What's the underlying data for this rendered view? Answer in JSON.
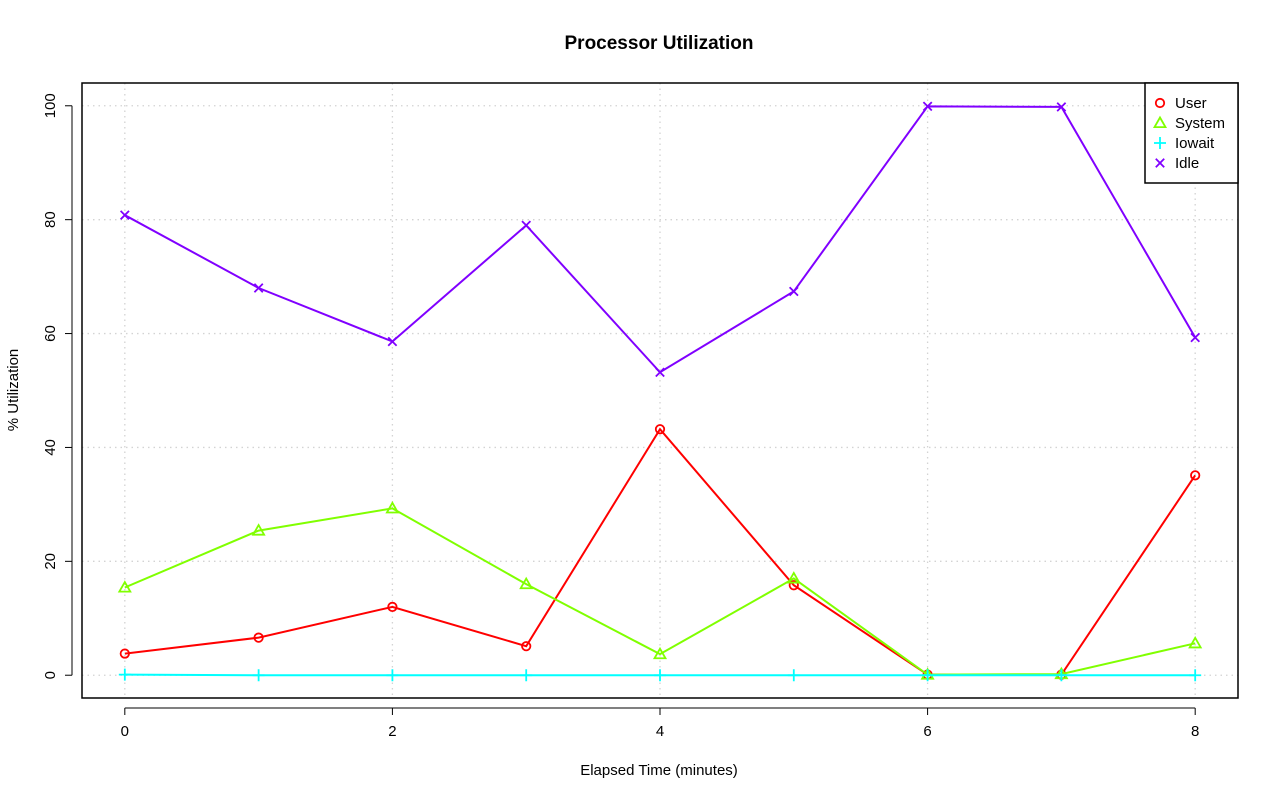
{
  "chart_data": {
    "type": "line",
    "title": "Processor Utilization",
    "xlabel": "Elapsed Time (minutes)",
    "ylabel": "% Utilization",
    "x": [
      0,
      1,
      2,
      3,
      4,
      5,
      6,
      7,
      8
    ],
    "xlim": [
      -0.32,
      8.32
    ],
    "ylim": [
      -4,
      104
    ],
    "x_ticks": [
      0,
      2,
      4,
      6,
      8
    ],
    "y_ticks": [
      0,
      20,
      40,
      60,
      80,
      100
    ],
    "grid": "dotted",
    "legend_position": "top-right",
    "series": [
      {
        "name": "User",
        "color": "#ff0000",
        "marker": "circle",
        "values": [
          3.8,
          6.6,
          12.0,
          5.1,
          43.2,
          15.8,
          0.1,
          0.1,
          35.1
        ]
      },
      {
        "name": "System",
        "color": "#80ff00",
        "marker": "triangle",
        "values": [
          15.4,
          25.4,
          29.3,
          16.0,
          3.7,
          17.0,
          0.1,
          0.2,
          5.6
        ]
      },
      {
        "name": "Iowait",
        "color": "#00ffff",
        "marker": "plus",
        "values": [
          0.1,
          0.0,
          0.0,
          0.0,
          0.0,
          0.0,
          0.0,
          0.0,
          0.0
        ]
      },
      {
        "name": "Idle",
        "color": "#8000ff",
        "marker": "cross",
        "values": [
          80.8,
          68.0,
          58.6,
          79.0,
          53.2,
          67.4,
          99.9,
          99.8,
          59.3
        ]
      }
    ]
  }
}
